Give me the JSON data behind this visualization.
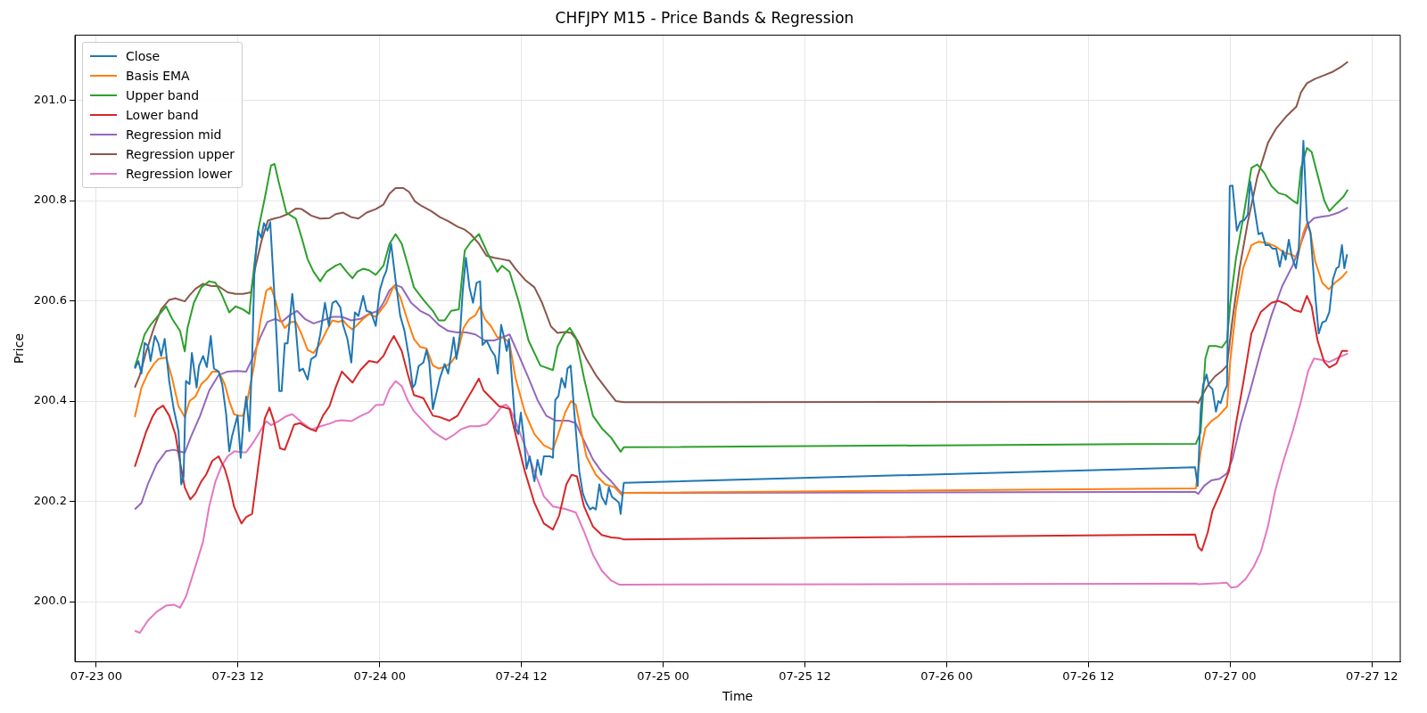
{
  "chart_data": {
    "type": "line",
    "title": "CHFJPY M15 - Price Bands & Regression",
    "xlabel": "Time",
    "ylabel": "Price",
    "grid": true,
    "legend": "top left",
    "marker": "none",
    "line_style": "solid",
    "xlim": [
      "--07-22T22:12",
      "--07-27T14:24"
    ],
    "xticks": [
      {
        "value": "--07-23T00:00",
        "label": "07-23 00"
      },
      {
        "value": "--07-23T12:00",
        "label": "07-23 12"
      },
      {
        "value": "--07-24T00:00",
        "label": "07-24 00"
      },
      {
        "value": "--07-24T12:00",
        "label": "07-24 12"
      },
      {
        "value": "--07-25T00:00",
        "label": "07-25 00"
      },
      {
        "value": "--07-25T12:00",
        "label": "07-25 12"
      },
      {
        "value": "--07-26T00:00",
        "label": "07-26 00"
      },
      {
        "value": "--07-26T12:00",
        "label": "07-26 12"
      },
      {
        "value": "--07-27T00:00",
        "label": "07-27 00"
      },
      {
        "value": "--07-27T12:00",
        "label": "07-27 12"
      }
    ],
    "ylim": [
      199.88,
      201.13
    ],
    "yticks": [
      {
        "value": 200,
        "label": "200.0"
      },
      200.2,
      200.4,
      200.6,
      200.8,
      {
        "value": 201,
        "label": "201.0"
      }
    ],
    "series": [
      {
        "name": "Close",
        "color": "#1f77b4",
        "x": [
          "--07-23T03:16",
          "--07-23T03:34",
          "--07-23T03:50",
          "--07-23T04:06",
          "--07-23T04:24",
          "--07-23T04:36",
          "--07-23T04:58",
          "--07-23T05:16",
          "--07-23T05:30",
          "--07-23T05:48",
          "--07-23T06:11",
          "--07-23T06:34",
          "--07-23T06:58",
          "--07-23T07:12",
          "--07-23T07:24",
          "--07-23T07:36",
          "--07-23T07:54",
          "--07-23T08:06",
          "--07-23T08:30",
          "--07-23T08:42",
          "--07-23T09:03",
          "--07-23T09:22",
          "--07-23T09:42",
          "--07-23T09:58",
          "--07-23T10:22",
          "--07-23T10:40",
          "--07-23T11:00",
          "--07-23T11:16",
          "--07-23T11:30",
          "--07-23T11:58",
          "--07-23T12:14",
          "--07-23T12:30",
          "--07-23T12:42",
          "--07-23T12:58",
          "--07-23T13:12",
          "--07-23T13:24",
          "--07-23T13:42",
          "--07-23T13:58",
          "--07-23T14:12",
          "--07-23T14:30",
          "--07-23T14:44",
          "--07-23T15:03",
          "--07-23T15:18",
          "--07-23T15:30",
          "--07-23T15:42",
          "--07-23T15:58",
          "--07-23T16:12",
          "--07-23T16:36",
          "--07-23T16:54",
          "--07-23T17:12",
          "--07-23T17:30",
          "--07-23T17:54",
          "--07-23T18:12",
          "--07-23T18:36",
          "--07-23T18:58",
          "--07-23T19:22",
          "--07-23T19:42",
          "--07-23T20:00",
          "--07-23T20:18",
          "--07-23T20:40",
          "--07-23T20:54",
          "--07-23T21:16",
          "--07-23T21:36",
          "--07-23T21:54",
          "--07-23T22:12",
          "--07-23T22:36",
          "--07-23T22:53",
          "--07-23T23:16",
          "--07-23T23:40",
          "--07-24T00:00",
          "--07-24T00:19",
          "--07-24T00:34",
          "--07-24T00:58",
          "--07-24T01:21",
          "--07-24T01:44",
          "--07-24T02:06",
          "--07-24T02:30",
          "--07-24T02:48",
          "--07-24T03:00",
          "--07-24T03:18",
          "--07-24T03:42",
          "--07-24T03:58",
          "--07-24T04:12",
          "--07-24T04:30",
          "--07-24T04:48",
          "--07-24T05:06",
          "--07-24T05:30",
          "--07-24T05:48",
          "--07-24T06:16",
          "--07-24T06:30",
          "--07-24T06:48",
          "--07-24T07:02",
          "--07-24T07:18",
          "--07-24T07:36",
          "--07-24T07:54",
          "--07-24T08:12",
          "--07-24T08:30",
          "--07-24T08:42",
          "--07-24T09:03",
          "--07-24T09:26",
          "--07-24T09:46",
          "--07-24T10:00",
          "--07-24T10:17",
          "--07-24T10:32",
          "--07-24T10:45",
          "--07-24T10:57",
          "--07-24T11:16",
          "--07-24T11:30",
          "--07-24T11:44",
          "--07-24T11:57",
          "--07-24T12:12",
          "--07-24T12:26",
          "--07-24T12:42",
          "--07-24T13:06",
          "--07-24T13:22",
          "--07-24T13:40",
          "--07-24T13:54",
          "--07-24T14:24",
          "--07-24T14:40",
          "--07-24T14:52",
          "--07-24T15:08",
          "--07-24T15:24",
          "--07-24T15:42",
          "--07-24T15:54",
          "--07-24T16:10",
          "--07-24T16:30",
          "--07-24T16:54",
          "--07-24T17:12",
          "--07-24T17:30",
          "--07-24T17:48",
          "--07-24T18:03",
          "--07-24T18:18",
          "--07-24T18:36",
          "--07-24T18:48",
          "--07-24T19:09",
          "--07-24T19:24",
          "--07-24T19:40",
          "--07-24T20:00",
          "--07-24T20:16",
          "--07-24T20:24",
          "--07-24T20:40",
          "--07-26T21:02",
          "--07-26T21:15",
          "--07-26T21:30",
          "--07-26T21:42",
          "--07-26T22:00",
          "--07-26T22:12",
          "--07-26T22:30",
          "--07-26T22:48",
          "--07-26T23:00",
          "--07-26T23:12",
          "--07-26T23:28",
          "--07-26T23:44",
          "--07-26T23:58",
          "--07-27T00:12",
          "--07-27T00:34",
          "--07-27T00:52",
          "--07-27T01:12",
          "--07-27T01:30",
          "--07-27T01:42",
          "--07-27T02:00",
          "--07-27T02:24",
          "--07-27T02:42",
          "--07-27T03:00",
          "--07-27T03:18",
          "--07-27T03:36",
          "--07-27T03:54",
          "--07-27T04:12",
          "--07-27T04:28",
          "--07-27T04:42",
          "--07-27T04:58",
          "--07-27T05:12",
          "--07-27T05:34",
          "--07-27T05:48",
          "--07-27T06:12",
          "--07-27T06:30",
          "--07-27T06:48",
          "--07-27T07:12",
          "--07-27T07:30",
          "--07-27T07:48",
          "--07-27T08:06",
          "--07-27T08:24",
          "--07-27T08:42",
          "--07-27T09:00",
          "--07-27T09:12",
          "--07-27T09:28",
          "--07-27T09:40",
          "--07-27T09:54"
        ],
        "values": [
          200.465,
          200.48,
          200.455,
          200.516,
          200.51,
          200.48,
          200.53,
          200.515,
          200.49,
          200.524,
          200.44,
          200.384,
          200.34,
          200.234,
          200.25,
          200.44,
          200.434,
          200.496,
          200.427,
          200.47,
          200.49,
          200.468,
          200.53,
          200.465,
          200.459,
          200.434,
          200.374,
          200.3,
          200.33,
          200.371,
          200.287,
          200.37,
          200.409,
          200.34,
          200.484,
          200.664,
          200.739,
          200.726,
          200.755,
          200.74,
          200.757,
          200.627,
          200.515,
          200.42,
          200.42,
          200.515,
          200.515,
          200.614,
          200.546,
          200.46,
          200.465,
          200.443,
          200.484,
          200.49,
          200.533,
          200.596,
          200.55,
          200.596,
          200.6,
          200.587,
          200.552,
          200.524,
          200.477,
          200.577,
          200.57,
          200.61,
          200.58,
          200.577,
          200.55,
          200.62,
          200.646,
          200.66,
          200.714,
          200.64,
          200.571,
          200.54,
          200.484,
          200.427,
          200.434,
          200.47,
          200.477,
          200.502,
          200.477,
          200.384,
          200.415,
          200.446,
          200.474,
          200.455,
          200.527,
          200.484,
          200.533,
          200.62,
          200.686,
          200.627,
          200.596,
          200.636,
          200.639,
          200.512,
          200.521,
          200.502,
          200.49,
          200.455,
          200.552,
          200.527,
          200.5,
          200.524,
          200.42,
          200.346,
          200.334,
          200.377,
          200.327,
          200.265,
          200.29,
          200.24,
          200.283,
          200.253,
          200.29,
          200.29,
          200.287,
          200.402,
          200.41,
          200.446,
          200.427,
          200.465,
          200.471,
          200.371,
          200.259,
          200.216,
          200.197,
          200.184,
          200.188,
          200.184,
          200.234,
          200.209,
          200.194,
          200.228,
          200.209,
          200.203,
          200.197,
          200.175,
          200.237,
          200.268,
          200.231,
          200.378,
          200.431,
          200.453,
          200.431,
          200.424,
          200.379,
          200.4,
          200.396,
          200.417,
          200.431,
          200.829,
          200.83,
          200.74,
          200.758,
          200.761,
          200.772,
          200.838,
          200.794,
          200.733,
          200.736,
          200.711,
          200.711,
          200.704,
          200.704,
          200.668,
          200.7,
          200.682,
          200.722,
          200.69,
          200.665,
          200.7,
          200.919,
          200.761,
          200.736,
          200.611,
          200.535,
          200.557,
          200.56,
          200.578,
          200.643,
          200.665,
          200.668,
          200.711,
          200.665,
          200.693
        ]
      },
      {
        "name": "Basis EMA",
        "color": "#ff7f0e",
        "x": [
          "--07-23T03:16",
          "--07-23T03:50",
          "--07-23T04:22",
          "--07-23T04:53",
          "--07-23T05:16",
          "--07-23T05:55",
          "--07-23T06:26",
          "--07-23T06:58",
          "--07-23T07:30",
          "--07-23T07:54",
          "--07-23T08:24",
          "--07-23T08:54",
          "--07-23T09:26",
          "--07-23T09:50",
          "--07-23T10:22",
          "--07-23T10:53",
          "--07-23T11:16",
          "--07-23T11:40",
          "--07-23T12:03",
          "--07-23T12:26",
          "--07-23T12:48",
          "--07-23T13:22",
          "--07-23T13:53",
          "--07-23T14:24",
          "--07-23T14:48",
          "--07-23T15:11",
          "--07-23T15:34",
          "--07-23T15:58",
          "--07-23T16:30",
          "--07-23T16:54",
          "--07-23T17:24",
          "--07-23T17:54",
          "--07-23T18:24",
          "--07-23T18:58",
          "--07-23T19:30",
          "--07-23T20:00",
          "--07-23T20:30",
          "--07-23T20:54",
          "--07-23T21:18",
          "--07-23T21:42",
          "--07-23T22:06",
          "--07-23T22:36",
          "--07-23T23:06",
          "--07-23T23:40",
          "--07-24T00:03",
          "--07-24T00:34",
          "--07-24T01:12",
          "--07-24T01:44",
          "--07-24T02:24",
          "--07-24T02:54",
          "--07-24T03:26",
          "--07-24T03:58",
          "--07-24T04:30",
          "--07-24T05:00",
          "--07-24T05:30",
          "--07-24T06:03",
          "--07-24T06:36",
          "--07-24T07:06",
          "--07-24T07:36",
          "--07-24T08:06",
          "--07-24T08:30",
          "--07-24T08:54",
          "--07-24T09:26",
          "--07-24T09:58",
          "--07-24T10:30",
          "--07-24T11:00",
          "--07-24T11:30",
          "--07-24T12:18",
          "--07-24T13:06",
          "--07-24T13:54",
          "--07-24T14:40",
          "--07-24T15:12",
          "--07-24T15:42",
          "--07-24T16:12",
          "--07-24T16:36",
          "--07-24T17:00",
          "--07-24T17:30",
          "--07-24T18:18",
          "--07-24T19:06",
          "--07-24T19:54",
          "--07-24T20:30",
          "--07-24T20:40",
          "--07-26T21:06",
          "--07-26T21:30",
          "--07-26T21:54",
          "--07-26T22:24",
          "--07-26T23:00",
          "--07-26T23:44",
          "--07-27T00:00",
          "--07-27T00:30",
          "--07-27T01:06",
          "--07-27T01:48",
          "--07-27T02:24",
          "--07-27T03:12",
          "--07-27T03:54",
          "--07-27T04:30",
          "--07-27T05:06",
          "--07-27T05:42",
          "--07-27T06:12",
          "--07-27T06:30",
          "--07-27T06:48",
          "--07-27T07:12",
          "--07-27T07:48",
          "--07-27T08:21",
          "--07-27T08:52",
          "--07-27T09:28",
          "--07-27T09:54"
        ],
        "values": [
          200.368,
          200.427,
          200.455,
          200.474,
          200.484,
          200.487,
          200.446,
          200.39,
          200.368,
          200.4,
          200.409,
          200.434,
          200.446,
          200.459,
          200.459,
          200.434,
          200.4,
          200.374,
          200.371,
          200.371,
          200.402,
          200.471,
          200.558,
          200.62,
          200.627,
          200.6,
          200.564,
          200.546,
          200.558,
          200.558,
          200.533,
          200.502,
          200.496,
          200.515,
          200.54,
          200.561,
          200.558,
          200.561,
          200.55,
          200.543,
          200.552,
          200.564,
          200.574,
          200.568,
          200.58,
          200.596,
          200.63,
          200.608,
          200.558,
          200.524,
          200.508,
          200.505,
          200.471,
          200.465,
          200.468,
          200.477,
          200.496,
          200.546,
          200.564,
          200.571,
          200.589,
          200.564,
          200.549,
          200.527,
          200.527,
          200.515,
          200.446,
          200.377,
          200.334,
          200.312,
          200.303,
          200.34,
          200.377,
          200.4,
          200.393,
          200.346,
          200.29,
          200.253,
          200.234,
          200.228,
          200.213,
          200.217,
          200.226,
          200.299,
          200.346,
          200.36,
          200.37,
          200.389,
          200.478,
          200.586,
          200.665,
          200.711,
          200.718,
          200.715,
          200.708,
          200.697,
          200.693,
          200.686,
          200.736,
          200.754,
          200.736,
          200.679,
          200.636,
          200.623,
          200.636,
          200.647,
          200.659
        ]
      },
      {
        "name": "Upper band",
        "color": "#2ca02c",
        "x": [
          "--07-23T03:16",
          "--07-23T03:34",
          "--07-23T04:06",
          "--07-23T04:36",
          "--07-23T05:16",
          "--07-23T05:55",
          "--07-23T06:26",
          "--07-23T07:06",
          "--07-23T07:30",
          "--07-23T07:44",
          "--07-23T08:16",
          "--07-23T08:54",
          "--07-23T09:34",
          "--07-23T10:06",
          "--07-23T10:36",
          "--07-23T11:16",
          "--07-23T11:48",
          "--07-23T12:26",
          "--07-23T12:58",
          "--07-23T13:12",
          "--07-23T13:45",
          "--07-23T14:16",
          "--07-23T14:48",
          "--07-23T15:06",
          "--07-23T15:26",
          "--07-23T16:06",
          "--07-23T16:54",
          "--07-23T17:24",
          "--07-23T17:54",
          "--07-23T18:24",
          "--07-23T18:58",
          "--07-23T19:30",
          "--07-23T20:16",
          "--07-23T20:40",
          "--07-23T21:12",
          "--07-23T21:42",
          "--07-23T22:06",
          "--07-23T22:36",
          "--07-23T23:06",
          "--07-23T23:40",
          "--07-24T00:19",
          "--07-24T00:50",
          "--07-24T01:21",
          "--07-24T01:52",
          "--07-24T02:24",
          "--07-24T02:54",
          "--07-24T03:42",
          "--07-24T04:30",
          "--07-24T05:00",
          "--07-24T05:30",
          "--07-24T06:03",
          "--07-24T06:42",
          "--07-24T07:12",
          "--07-24T07:42",
          "--07-24T08:24",
          "--07-24T09:12",
          "--07-24T09:58",
          "--07-24T10:22",
          "--07-24T11:00",
          "--07-24T11:48",
          "--07-24T12:36",
          "--07-24T13:36",
          "--07-24T14:40",
          "--07-24T15:03",
          "--07-24T15:36",
          "--07-24T16:06",
          "--07-24T16:36",
          "--07-24T17:18",
          "--07-24T18:03",
          "--07-24T18:48",
          "--07-24T19:36",
          "--07-24T20:24",
          "--07-24T20:40",
          "--07-26T21:06",
          "--07-26T21:30",
          "--07-26T21:54",
          "--07-26T22:12",
          "--07-26T22:48",
          "--07-26T23:18",
          "--07-26T23:44",
          "--07-27T00:00",
          "--07-27T00:30",
          "--07-27T01:06",
          "--07-27T01:48",
          "--07-27T02:18",
          "--07-27T02:54",
          "--07-27T03:30",
          "--07-27T04:06",
          "--07-27T04:42",
          "--07-27T05:18",
          "--07-27T05:42",
          "--07-27T06:00",
          "--07-27T06:30",
          "--07-27T06:54",
          "--07-27T07:24",
          "--07-27T07:58",
          "--07-27T08:24",
          "--07-27T09:00",
          "--07-27T09:36",
          "--07-27T09:58"
        ],
        "values": [
          200.468,
          200.49,
          200.533,
          200.552,
          200.571,
          200.589,
          200.564,
          200.54,
          200.499,
          200.546,
          200.596,
          200.627,
          200.639,
          200.636,
          200.614,
          200.577,
          200.589,
          200.583,
          200.574,
          200.633,
          200.745,
          200.804,
          200.87,
          200.873,
          200.839,
          200.776,
          200.764,
          200.726,
          200.683,
          200.658,
          200.639,
          200.658,
          200.67,
          200.674,
          200.658,
          200.645,
          200.658,
          200.664,
          200.661,
          200.652,
          200.67,
          200.714,
          200.733,
          200.714,
          200.67,
          200.627,
          200.602,
          200.58,
          200.561,
          200.561,
          200.58,
          200.583,
          200.7,
          200.717,
          200.733,
          200.692,
          200.658,
          200.67,
          200.658,
          200.596,
          200.521,
          200.471,
          200.462,
          200.508,
          200.533,
          200.546,
          200.527,
          200.446,
          200.371,
          200.346,
          200.327,
          200.299,
          200.308,
          200.315,
          200.338,
          200.485,
          200.51,
          200.51,
          200.507,
          200.521,
          200.593,
          200.686,
          200.765,
          200.865,
          200.872,
          200.855,
          200.829,
          200.815,
          200.811,
          200.8,
          200.794,
          200.865,
          200.905,
          200.897,
          200.851,
          200.8,
          200.779,
          200.794,
          200.808,
          200.822
        ]
      },
      {
        "name": "Lower band",
        "color": "#d62728",
        "x": [
          "--07-23T03:16",
          "--07-23T03:42",
          "--07-23T04:12",
          "--07-23T04:45",
          "--07-23T05:08",
          "--07-23T05:40",
          "--07-23T06:11",
          "--07-23T06:42",
          "--07-23T07:06",
          "--07-23T07:30",
          "--07-23T07:58",
          "--07-23T08:24",
          "--07-23T08:54",
          "--07-23T09:18",
          "--07-23T09:50",
          "--07-23T10:22",
          "--07-23T10:53",
          "--07-23T11:16",
          "--07-23T11:40",
          "--07-23T12:03",
          "--07-23T12:18",
          "--07-23T12:42",
          "--07-23T13:12",
          "--07-23T13:45",
          "--07-23T14:16",
          "--07-23T14:40",
          "--07-23T15:03",
          "--07-23T15:34",
          "--07-23T15:58",
          "--07-23T16:22",
          "--07-23T16:45",
          "--07-23T17:16",
          "--07-23T17:54",
          "--07-23T18:36",
          "--07-23T19:12",
          "--07-23T19:45",
          "--07-23T20:16",
          "--07-23T20:48",
          "--07-23T21:12",
          "--07-23T21:42",
          "--07-23T22:22",
          "--07-23T23:06",
          "--07-23T23:48",
          "--07-24T00:19",
          "--07-24T00:50",
          "--07-24T01:12",
          "--07-24T01:52",
          "--07-24T02:24",
          "--07-24T02:54",
          "--07-24T03:42",
          "--07-24T04:30",
          "--07-24T05:06",
          "--07-24T05:54",
          "--07-24T06:36",
          "--07-24T07:12",
          "--07-24T07:54",
          "--07-24T08:24",
          "--07-24T08:48",
          "--07-24T09:26",
          "--07-24T10:06",
          "--07-24T10:36",
          "--07-24T11:00",
          "--07-24T11:30",
          "--07-24T12:18",
          "--07-24T13:06",
          "--07-24T13:54",
          "--07-24T14:40",
          "--07-24T15:12",
          "--07-24T15:48",
          "--07-24T16:15",
          "--07-24T16:42",
          "--07-24T17:18",
          "--07-24T18:03",
          "--07-24T18:48",
          "--07-24T19:36",
          "--07-24T20:16",
          "--07-24T20:40",
          "--07-26T21:02",
          "--07-26T21:18",
          "--07-26T21:36",
          "--07-26T22:06",
          "--07-26T22:30",
          "--07-26T23:06",
          "--07-26T23:54",
          "--07-27T00:30",
          "--07-27T01:06",
          "--07-27T01:48",
          "--07-27T02:36",
          "--07-27T03:30",
          "--07-27T04:06",
          "--07-27T04:48",
          "--07-27T05:24",
          "--07-27T06:00",
          "--07-27T06:30",
          "--07-27T06:54",
          "--07-27T07:24",
          "--07-27T07:58",
          "--07-27T08:24",
          "--07-27T09:00",
          "--07-27T09:28",
          "--07-27T09:58"
        ],
        "values": [
          200.269,
          200.3,
          200.337,
          200.368,
          200.383,
          200.391,
          200.371,
          200.334,
          200.278,
          200.228,
          200.204,
          200.216,
          200.24,
          200.253,
          200.281,
          200.29,
          200.265,
          200.234,
          200.19,
          200.169,
          200.156,
          200.169,
          200.175,
          200.275,
          200.365,
          200.387,
          200.359,
          200.306,
          200.303,
          200.328,
          200.353,
          200.356,
          200.347,
          200.34,
          200.371,
          200.39,
          200.427,
          200.459,
          200.449,
          200.437,
          200.462,
          200.48,
          200.477,
          200.49,
          200.515,
          200.53,
          200.5,
          200.452,
          200.412,
          200.406,
          200.371,
          200.368,
          200.361,
          200.371,
          200.396,
          200.424,
          200.445,
          200.421,
          200.406,
          200.39,
          200.387,
          200.384,
          200.334,
          200.259,
          200.197,
          200.156,
          200.144,
          200.172,
          200.234,
          200.253,
          200.25,
          200.19,
          200.15,
          200.133,
          200.128,
          200.127,
          200.124,
          200.134,
          200.109,
          200.102,
          200.138,
          200.181,
          200.213,
          200.26,
          200.356,
          200.435,
          200.535,
          200.578,
          200.596,
          200.6,
          200.593,
          200.582,
          200.578,
          200.61,
          200.589,
          200.521,
          200.478,
          200.467,
          200.475,
          200.5,
          200.5
        ]
      },
      {
        "name": "Regression mid",
        "color": "#9467bd",
        "x": [
          "--07-23T03:16",
          "--07-23T03:50",
          "--07-23T04:22",
          "--07-23T05:08",
          "--07-23T05:55",
          "--07-23T06:34",
          "--07-23T07:30",
          "--07-23T08:00",
          "--07-23T08:48",
          "--07-23T09:34",
          "--07-23T10:22",
          "--07-23T11:08",
          "--07-23T11:54",
          "--07-23T12:42",
          "--07-23T13:12",
          "--07-23T13:53",
          "--07-23T14:30",
          "--07-23T15:11",
          "--07-23T15:42",
          "--07-23T16:22",
          "--07-23T17:00",
          "--07-23T17:40",
          "--07-23T18:24",
          "--07-23T19:12",
          "--07-23T20:00",
          "--07-23T20:48",
          "--07-23T21:36",
          "--07-23T22:22",
          "--07-23T23:06",
          "--07-23T23:54",
          "--07-24T00:19",
          "--07-24T00:50",
          "--07-24T01:21",
          "--07-24T01:52",
          "--07-24T02:40",
          "--07-24T03:26",
          "--07-24T04:12",
          "--07-24T05:00",
          "--07-24T05:48",
          "--07-24T06:36",
          "--07-24T07:21",
          "--07-24T08:06",
          "--07-24T08:54",
          "--07-24T09:42",
          "--07-24T10:22",
          "--07-24T11:00",
          "--07-24T11:48",
          "--07-24T12:36",
          "--07-24T13:22",
          "--07-24T14:06",
          "--07-24T14:54",
          "--07-24T15:58",
          "--07-24T16:36",
          "--07-24T17:18",
          "--07-24T18:03",
          "--07-24T18:48",
          "--07-24T19:36",
          "--07-24T20:24",
          "--07-24T20:40",
          "--07-26T21:02",
          "--07-26T21:18",
          "--07-26T21:48",
          "--07-26T22:24",
          "--07-26T23:06",
          "--07-26T23:44",
          "--07-27T00:12",
          "--07-27T00:54",
          "--07-27T01:42",
          "--07-27T02:36",
          "--07-27T03:30",
          "--07-27T04:24",
          "--07-27T05:18",
          "--07-27T06:00",
          "--07-27T06:36",
          "--07-27T07:06",
          "--07-27T07:48",
          "--07-27T08:24",
          "--07-27T09:10",
          "--07-27T09:58"
        ],
        "values": [
          200.184,
          200.197,
          200.234,
          200.275,
          200.3,
          200.303,
          200.297,
          200.328,
          200.371,
          200.421,
          200.452,
          200.459,
          200.46,
          200.459,
          200.484,
          200.527,
          200.558,
          200.564,
          200.558,
          200.571,
          200.58,
          200.564,
          200.555,
          200.561,
          200.568,
          200.568,
          200.561,
          200.564,
          200.574,
          200.58,
          200.596,
          200.621,
          200.632,
          200.627,
          200.596,
          200.58,
          200.571,
          200.552,
          200.54,
          200.537,
          200.537,
          200.533,
          200.521,
          200.521,
          200.527,
          200.533,
          200.49,
          200.446,
          200.402,
          200.371,
          200.361,
          200.361,
          200.356,
          200.321,
          200.284,
          200.259,
          200.24,
          200.218,
          200.217,
          200.219,
          200.215,
          200.231,
          200.242,
          200.245,
          200.256,
          200.285,
          200.356,
          200.421,
          200.5,
          200.571,
          200.629,
          200.671,
          200.715,
          200.754,
          200.765,
          200.768,
          200.77,
          200.776,
          200.786
        ]
      },
      {
        "name": "Regression upper",
        "color": "#8c564b",
        "x": [
          "--07-23T03:16",
          "--07-23T03:42",
          "--07-23T04:12",
          "--07-23T04:53",
          "--07-23T05:30",
          "--07-23T06:11",
          "--07-23T06:42",
          "--07-23T07:30",
          "--07-23T07:54",
          "--07-23T08:24",
          "--07-23T09:03",
          "--07-23T09:42",
          "--07-23T10:22",
          "--07-23T11:08",
          "--07-23T11:48",
          "--07-23T12:26",
          "--07-23T13:06",
          "--07-23T13:30",
          "--07-23T14:00",
          "--07-23T14:32",
          "--07-23T15:03",
          "--07-23T15:34",
          "--07-23T16:12",
          "--07-23T16:54",
          "--07-23T17:24",
          "--07-23T18:12",
          "--07-23T18:58",
          "--07-23T19:45",
          "--07-23T20:16",
          "--07-23T20:54",
          "--07-23T21:36",
          "--07-23T22:12",
          "--07-23T22:54",
          "--07-23T23:40",
          "--07-24T00:19",
          "--07-24T00:50",
          "--07-24T01:21",
          "--07-24T02:00",
          "--07-24T02:30",
          "--07-24T03:00",
          "--07-24T03:34",
          "--07-24T04:22",
          "--07-24T05:06",
          "--07-24T05:48",
          "--07-24T06:36",
          "--07-24T07:12",
          "--07-24T07:42",
          "--07-24T08:24",
          "--07-24T09:03",
          "--07-24T09:42",
          "--07-24T10:22",
          "--07-24T11:00",
          "--07-24T11:30",
          "--07-24T12:18",
          "--07-24T13:06",
          "--07-24T13:45",
          "--07-24T14:30",
          "--07-24T15:03",
          "--07-24T15:42",
          "--07-24T16:12",
          "--07-24T16:45",
          "--07-24T17:30",
          "--07-24T18:18",
          "--07-24T19:06",
          "--07-24T20:00",
          "--07-24T20:40",
          "--07-26T21:06",
          "--07-26T21:18",
          "--07-26T21:36",
          "--07-26T22:06",
          "--07-26T22:42",
          "--07-26T23:18",
          "--07-26T23:44",
          "--07-27T00:12",
          "--07-27T00:48",
          "--07-27T01:30",
          "--07-27T02:18",
          "--07-27T03:12",
          "--07-27T03:54",
          "--07-27T04:48",
          "--07-27T05:36",
          "--07-27T06:00",
          "--07-27T06:30",
          "--07-27T07:12",
          "--07-27T07:58",
          "--07-27T08:42",
          "--07-27T09:28",
          "--07-27T09:58"
        ],
        "values": [
          200.427,
          200.452,
          200.496,
          200.546,
          200.583,
          200.602,
          200.605,
          200.599,
          200.611,
          200.624,
          200.634,
          200.63,
          200.629,
          200.617,
          200.614,
          200.614,
          200.617,
          200.67,
          200.72,
          200.76,
          200.764,
          200.767,
          200.773,
          200.784,
          200.783,
          200.77,
          200.764,
          200.765,
          200.773,
          200.776,
          200.767,
          200.764,
          200.776,
          200.783,
          200.792,
          200.814,
          200.825,
          200.825,
          200.817,
          200.798,
          200.789,
          200.779,
          200.767,
          200.759,
          200.748,
          200.742,
          200.733,
          200.714,
          200.69,
          200.686,
          200.683,
          200.68,
          200.664,
          200.642,
          200.627,
          200.596,
          200.549,
          200.536,
          200.538,
          200.536,
          200.521,
          200.484,
          200.452,
          200.427,
          200.4,
          200.398,
          200.399,
          200.396,
          200.41,
          200.431,
          200.449,
          200.46,
          200.471,
          200.564,
          200.665,
          200.758,
          200.847,
          200.915,
          200.944,
          200.969,
          200.987,
          201.016,
          201.034,
          201.043,
          201.05,
          201.057,
          201.068,
          201.077
        ]
      },
      {
        "name": "Regression lower",
        "color": "#e377c2",
        "x": [
          "--07-23T03:16",
          "--07-23T03:42",
          "--07-23T04:22",
          "--07-23T05:08",
          "--07-23T05:54",
          "--07-23T06:34",
          "--07-23T07:06",
          "--07-23T07:36",
          "--07-23T08:16",
          "--07-23T09:03",
          "--07-23T09:34",
          "--07-23T10:06",
          "--07-23T10:36",
          "--07-23T11:08",
          "--07-23T11:42",
          "--07-23T12:18",
          "--07-23T12:42",
          "--07-23T13:22",
          "--07-23T13:53",
          "--07-23T14:24",
          "--07-23T14:48",
          "--07-23T15:26",
          "--07-23T16:06",
          "--07-23T16:36",
          "--07-23T17:24",
          "--07-23T18:12",
          "--07-23T19:00",
          "--07-23T19:45",
          "--07-23T20:16",
          "--07-23T20:48",
          "--07-23T21:36",
          "--07-23T22:22",
          "--07-23T23:06",
          "--07-23T23:40",
          "--07-24T00:19",
          "--07-24T00:50",
          "--07-24T01:21",
          "--07-24T01:52",
          "--07-24T02:24",
          "--07-24T02:54",
          "--07-24T03:42",
          "--07-24T04:30",
          "--07-24T05:06",
          "--07-24T05:36",
          "--07-24T06:18",
          "--07-24T06:54",
          "--07-24T07:36",
          "--07-24T08:24",
          "--07-24T09:03",
          "--07-24T09:42",
          "--07-24T10:22",
          "--07-24T10:42",
          "--07-24T11:00",
          "--07-24T11:30",
          "--07-24T12:18",
          "--07-24T13:06",
          "--07-24T13:54",
          "--07-24T14:40",
          "--07-24T15:42",
          "--07-24T16:36",
          "--07-24T17:18",
          "--07-24T18:03",
          "--07-24T18:48",
          "--07-24T19:36",
          "--07-24T20:16",
          "--07-24T20:40",
          "--07-26T21:06",
          "--07-26T21:18",
          "--07-26T23:12",
          "--07-26T23:42",
          "--07-27T00:06",
          "--07-27T00:36",
          "--07-27T01:18",
          "--07-27T02:00",
          "--07-27T02:36",
          "--07-27T03:12",
          "--07-27T03:48",
          "--07-27T04:30",
          "--07-27T05:18",
          "--07-27T06:00",
          "--07-27T06:36",
          "--07-27T07:06",
          "--07-27T07:48",
          "--07-27T08:24",
          "--07-27T09:00",
          "--07-27T09:28",
          "--07-27T09:58"
        ],
        "values": [
          199.942,
          199.938,
          199.962,
          199.98,
          199.992,
          199.994,
          199.988,
          200.01,
          200.06,
          200.12,
          200.19,
          200.24,
          200.27,
          200.29,
          200.3,
          200.298,
          200.298,
          200.32,
          200.34,
          200.36,
          200.352,
          200.36,
          200.37,
          200.374,
          200.358,
          200.343,
          200.35,
          200.355,
          200.36,
          200.362,
          200.36,
          200.37,
          200.378,
          200.392,
          200.393,
          200.424,
          200.44,
          200.43,
          200.4,
          200.38,
          200.36,
          200.34,
          200.33,
          200.323,
          200.333,
          200.344,
          200.35,
          200.35,
          200.354,
          200.37,
          200.39,
          200.393,
          200.386,
          200.36,
          200.31,
          200.26,
          200.21,
          200.19,
          200.185,
          200.178,
          200.14,
          200.094,
          200.062,
          200.042,
          200.034,
          200.034,
          200.036,
          200.035,
          200.037,
          200.038,
          200.028,
          200.03,
          200.045,
          200.07,
          200.1,
          200.15,
          200.22,
          200.28,
          200.34,
          200.4,
          200.46,
          200.485,
          200.482,
          200.478,
          200.485,
          200.49,
          200.495
        ]
      }
    ]
  }
}
